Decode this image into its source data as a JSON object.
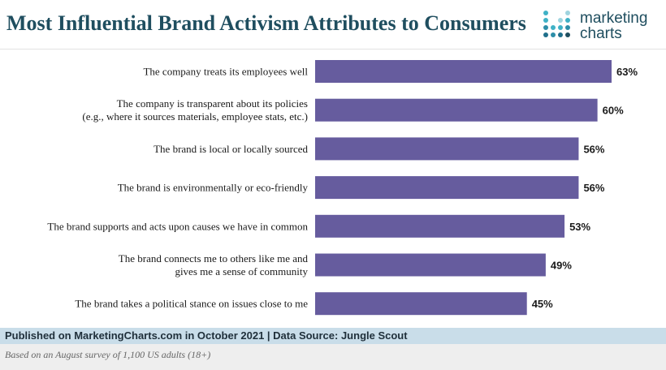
{
  "header": {
    "title": "Most Influential Brand Activism Attributes to Consumers",
    "logo_line1": "marketing",
    "logo_line2": "charts"
  },
  "chart_data": {
    "type": "bar",
    "orientation": "horizontal",
    "categories": [
      [
        "The company treats its employees well"
      ],
      [
        "The company is transparent about its policies",
        "(e.g., where it sources materials, employee stats, etc.)"
      ],
      [
        "The brand is local or locally sourced"
      ],
      [
        "The brand is environmentally or eco-friendly"
      ],
      [
        "The brand supports and acts upon causes we have in common"
      ],
      [
        "The brand connects me to others like me and",
        "gives me a sense of community"
      ],
      [
        "The brand takes a political stance on issues close to me"
      ]
    ],
    "values": [
      63,
      60,
      56,
      56,
      53,
      49,
      45
    ],
    "value_labels": [
      "63%",
      "60%",
      "56%",
      "56%",
      "53%",
      "49%",
      "45%"
    ],
    "unit": "%",
    "xlim": [
      0,
      63
    ],
    "grid": false,
    "bar_color": "#665c9e"
  },
  "footer": {
    "published": "Published on MarketingCharts.com in October 2021 | Data Source: Jungle Scout",
    "note": "Based on an August survey of 1,100 US adults (18+)"
  },
  "colors": {
    "title": "#1f4e5f",
    "bar": "#665c9e",
    "footer_band": "#c9dde9",
    "note_band": "#eeeeee",
    "logo_teal": "#3fb1c6",
    "logo_navy": "#1f4e5f"
  }
}
